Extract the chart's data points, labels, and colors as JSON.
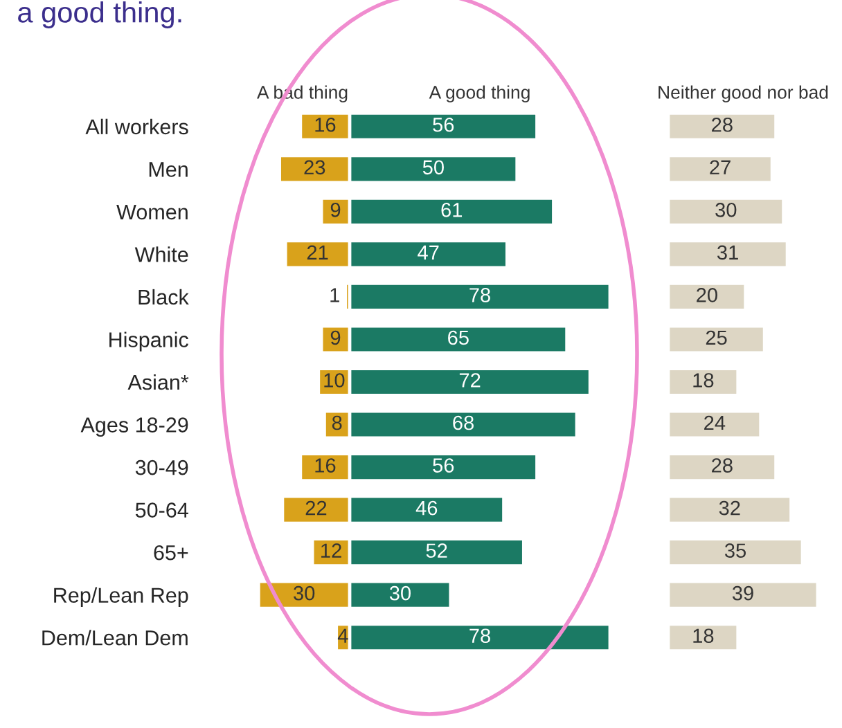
{
  "chart_data": [
    {
      "type": "bar",
      "orientation": "horizontal",
      "title": "a good thing.",
      "data_labels": true,
      "tick_labels": "y",
      "xlim": [
        31,
        0
      ],
      "categories": [
        "All workers",
        "Men",
        "Women",
        "White",
        "Black",
        "Hispanic",
        "Asian*",
        "Ages 18-29",
        "30-49",
        "50-64",
        "65+",
        "Rep/Lean Rep",
        "Dem/Lean Dem"
      ],
      "series": [
        {
          "name": "A bad thing",
          "color": "#d9a21b",
          "values": [
            16,
            23,
            9,
            21,
            1,
            9,
            10,
            8,
            16,
            22,
            12,
            30,
            4
          ]
        }
      ]
    },
    {
      "type": "bar",
      "orientation": "horizontal",
      "data_labels": true,
      "tick_labels": false,
      "categories": [
        null,
        null,
        null,
        null,
        null,
        null,
        null,
        null,
        null,
        null,
        null,
        null,
        null
      ],
      "series": [
        {
          "name": "A good thing",
          "color": "#1b7a64",
          "values": [
            56,
            50,
            61,
            47,
            78,
            65,
            72,
            68,
            56,
            46,
            52,
            30,
            78
          ]
        }
      ]
    },
    {
      "type": "bar",
      "orientation": "horizontal",
      "data_labels": true,
      "tick_labels": false,
      "categories": [
        null,
        null,
        null,
        null,
        null,
        null,
        null,
        null,
        null,
        null,
        null,
        null,
        null
      ],
      "series": [
        {
          "name": "Neither good nor bad",
          "color": "#ddd6c4",
          "values": [
            28,
            27,
            30,
            31,
            20,
            25,
            18,
            24,
            28,
            32,
            35,
            39,
            18
          ]
        }
      ]
    }
  ]
}
